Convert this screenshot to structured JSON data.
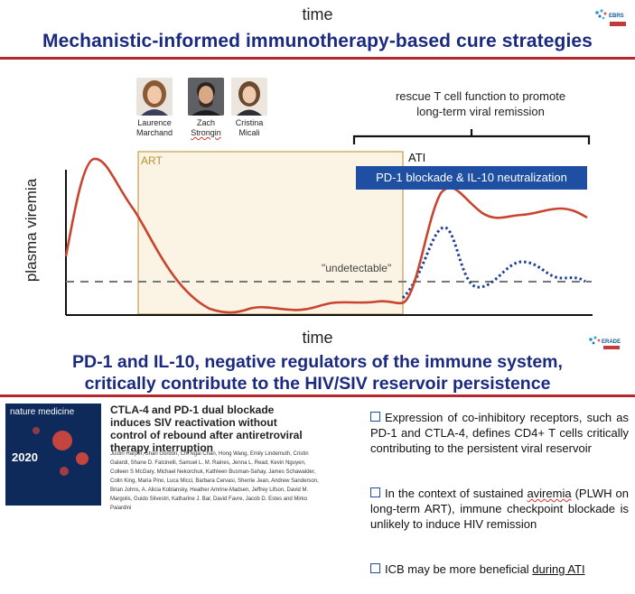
{
  "header": {
    "time_label": "time",
    "title": "Mechanistic-informed immunotherapy-based cure strategies",
    "logo_text": "EBRS"
  },
  "people": [
    {
      "first": "Laurence",
      "last": "Marchand"
    },
    {
      "first": "Zach",
      "last": "Strongin"
    },
    {
      "first": "Cristina",
      "last": "Micali"
    }
  ],
  "diagram": {
    "rescue_line1": "rescue T cell function to promote",
    "rescue_line2": "long-term viral remission",
    "art_label": "ART",
    "ati_label": "ATI",
    "intervention_label": "PD-1 blockade & IL-10 neutralization",
    "y_axis_label": "plasma viremia",
    "threshold_label": "\"undetectable\"",
    "x_axis_label": "time",
    "colors": {
      "viremia_curve": "#c9442f",
      "rebound_dotted": "#1f3f96",
      "art_box": "#c9a45a",
      "art_fill": "#fbf3e3",
      "threshold": "#777777"
    }
  },
  "subtitle": {
    "line1": "PD-1 and IL-10, negative regulators of the immune system,",
    "line2": "critically contribute to the HIV/SIV reservoir persistence",
    "logo_text": "ERADE"
  },
  "paper": {
    "journal": "nature medicine",
    "year": "2020",
    "title": "CTLA-4 and PD-1 dual blockade induces SIV reactivation without control of rebound after antiretroviral therapy interruption",
    "authors": "Justin Harper, Shari Gordon, Chi Ngai Chan, Hong Wang, Emily Lindemuth, Cristin Galardi, Shane D. Falcinelli, Samuel L. M. Raines, Jenna L. Read, Kevin Nguyen, Colleen S McGary, Michael Nekorchuk, Kathleen Busman-Sahay, James Schawalder, Colin King, Maria Pino, Luca Micci, Barbara Cervasi, Sherrie Jean, Andrew Sanderson, Brian Johns, A. Alicia Koblansky, Heather Amrine-Madsen, Jeffrey Lifson, David M. Margolis, Guido Silvestri, Katharine J. Bar, David Favre, Jacob D. Estes and Mirko Paiardini"
  },
  "bullets": [
    {
      "text": "Expression of co-inhibitory receptors, such as PD-1 and CTLA-4, defines CD4+ T cells critically contributing to the persistent viral reservoir"
    },
    {
      "pre": "In the context of sustained ",
      "wavy": "aviremia",
      "post": " (PLWH on long-term ART), immune checkpoint blockade is unlikely to induce HIV remission"
    },
    {
      "pre": "ICB may be more beneficial ",
      "under": "during ATI"
    }
  ]
}
